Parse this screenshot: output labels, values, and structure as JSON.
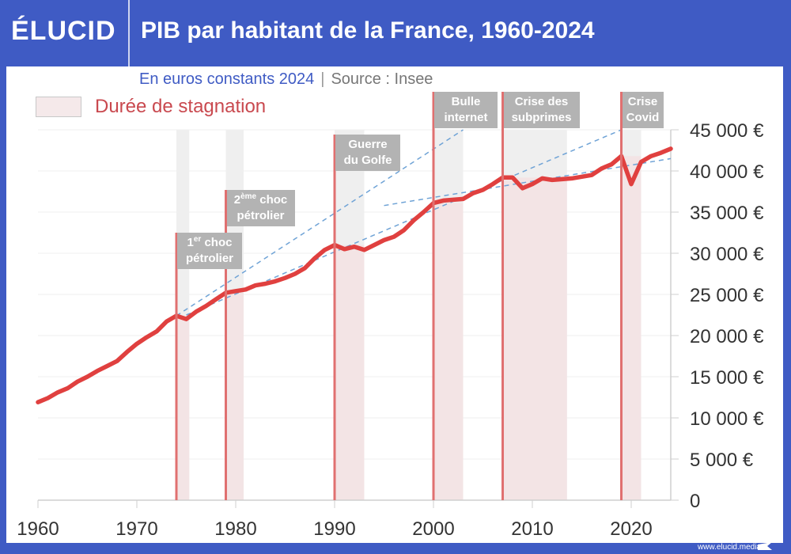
{
  "header": {
    "logo": "ÉLUCID",
    "title": "PIB par habitant de la France, 1960-2024"
  },
  "subtitle": {
    "units": "En euros constants 2024",
    "separator": "|",
    "source": "Source : Insee"
  },
  "legend": {
    "label": "Durée de stagnation",
    "swatch_color": "#f5e9ea"
  },
  "footer": {
    "url": "www.elucid.media"
  },
  "colors": {
    "background": "#3f5bc4",
    "line": "#e0403f",
    "event_line": "#e07070",
    "band_gray": "#efefef",
    "band_pink": "#f3e4e5",
    "trend": "#6fa3d6"
  },
  "chart_data": {
    "type": "line",
    "title": "PIB par habitant de la France, 1960-2024",
    "xlim": [
      1960,
      2024
    ],
    "ylim": [
      0,
      45000
    ],
    "x_ticks": [
      "1960",
      "1970",
      "1980",
      "1990",
      "2000",
      "2010",
      "2020"
    ],
    "y_ticks": [
      "0",
      "5 000 €",
      "10 000 €",
      "15 000 €",
      "20 000 €",
      "25 000 €",
      "30 000 €",
      "35 000 €",
      "40 000 €",
      "45 000 €"
    ],
    "y_axis_side": "right",
    "grid": true,
    "series": [
      {
        "x": [
          1960,
          1961,
          1962,
          1963,
          1964,
          1965,
          1966,
          1967,
          1968,
          1969,
          1970,
          1971,
          1972,
          1973,
          1974,
          1975,
          1976,
          1977,
          1978,
          1979,
          1980,
          1981,
          1982,
          1983,
          1984,
          1985,
          1986,
          1987,
          1988,
          1989,
          1990,
          1991,
          1992,
          1993,
          1994,
          1995,
          1996,
          1997,
          1998,
          1999,
          2000,
          2001,
          2002,
          2003,
          2004,
          2005,
          2006,
          2007,
          2008,
          2009,
          2010,
          2011,
          2012,
          2013,
          2014,
          2015,
          2016,
          2017,
          2018,
          2019,
          2020,
          2021,
          2022,
          2023,
          2024
        ],
        "y": [
          11900,
          12400,
          13100,
          13600,
          14400,
          15000,
          15700,
          16300,
          16900,
          18000,
          19000,
          19800,
          20500,
          21700,
          22400,
          22000,
          22900,
          23600,
          24400,
          25200,
          25400,
          25600,
          26100,
          26300,
          26600,
          27000,
          27500,
          28200,
          29400,
          30400,
          31000,
          30500,
          30800,
          30400,
          31000,
          31600,
          32000,
          32800,
          34000,
          35000,
          36100,
          36400,
          36500,
          36600,
          37300,
          37700,
          38400,
          39200,
          39200,
          37900,
          38400,
          39100,
          38900,
          39000,
          39100,
          39300,
          39500,
          40300,
          40800,
          41800,
          38400,
          41100,
          41800,
          42200,
          42700
        ]
      }
    ],
    "trend_lines": [
      {
        "from": [
          1974,
          22400
        ],
        "to": [
          2003,
          45000
        ]
      },
      {
        "from": [
          1975,
          22500
        ],
        "to": [
          2019,
          45000
        ]
      },
      {
        "from": [
          1995,
          35800
        ],
        "to": [
          2024,
          41500
        ]
      }
    ],
    "stagnation_periods": [
      [
        1974,
        1975.3
      ],
      [
        1979,
        1980.8
      ],
      [
        1990,
        1993
      ],
      [
        2000,
        2003
      ],
      [
        2007,
        2013.5
      ],
      [
        2019,
        2021
      ]
    ],
    "events": [
      {
        "year": 1974,
        "pre": "1",
        "sup": "er",
        "post": " choc",
        "line2": "pétrolier"
      },
      {
        "year": 1979,
        "pre": "2",
        "sup": "ème",
        "post": " choc",
        "line2": "pétrolier"
      },
      {
        "year": 1990,
        "pre": "Guerre",
        "sup": "",
        "post": "",
        "line2": "du Golfe"
      },
      {
        "year": 2000,
        "pre": "Bulle",
        "sup": "",
        "post": "",
        "line2": "internet"
      },
      {
        "year": 2007,
        "pre": "Crise des",
        "sup": "",
        "post": "",
        "line2": "subprimes"
      },
      {
        "year": 2019,
        "pre": "Crise",
        "sup": "",
        "post": "",
        "line2": "Covid"
      }
    ]
  }
}
